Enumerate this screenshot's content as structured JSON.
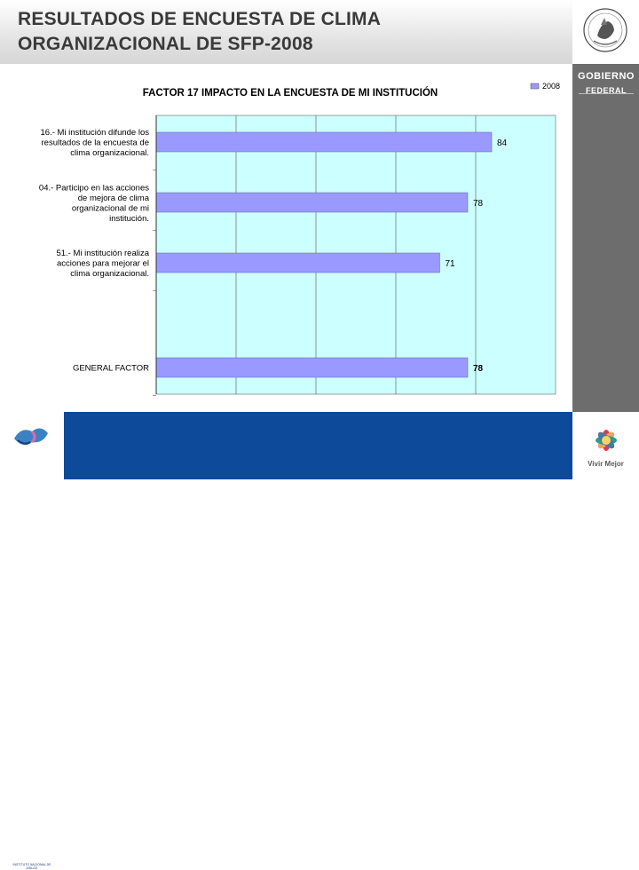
{
  "slide": {
    "title_line1": "RESULTADOS DE ENCUESTA DE CLIMA",
    "title_line2": "ORGANIZACIONAL DE SFP-2008",
    "gobierno_line1": "GOBIERNO",
    "gobierno_line2": "FEDERAL",
    "seal_text": "ESTADOS UNIDOS MEXICANOS",
    "vivir_mejor": "Vivir Mejor",
    "institute_label": "INSTITUTO NACIONAL DE ASILOS",
    "colors": {
      "header_text": "#3a3a3a",
      "footer_blue": "#0d4a9a",
      "sidebar_gray": "#6d6d6d"
    }
  },
  "chart_data": {
    "type": "bar",
    "orientation": "horizontal",
    "title": "FACTOR  17 IMPACTO EN LA ENCUESTA DE MI INSTITUCIÓN",
    "categories": [
      [
        "16.-  Mi institución difunde los",
        "resultados de la encuesta de",
        "clima organizacional."
      ],
      [
        "04.-  Participo en las acciones",
        "de mejora de clima",
        "organizacional de mi",
        "institución."
      ],
      [
        "51.-  Mi institución realiza",
        "acciones para mejorar el",
        "clima organizacional."
      ],
      [
        "GENERAL FACTOR"
      ]
    ],
    "series": [
      {
        "name": "2008",
        "values": [
          84,
          78,
          71,
          78
        ],
        "color": "#9999ff"
      }
    ],
    "data_labels": [
      "84",
      "78",
      "71",
      "78"
    ],
    "data_label_bold": [
      false,
      false,
      false,
      true
    ],
    "xlim": [
      0,
      100
    ],
    "plot_background": "#ccffff",
    "grid": true,
    "legend": "top-right"
  }
}
